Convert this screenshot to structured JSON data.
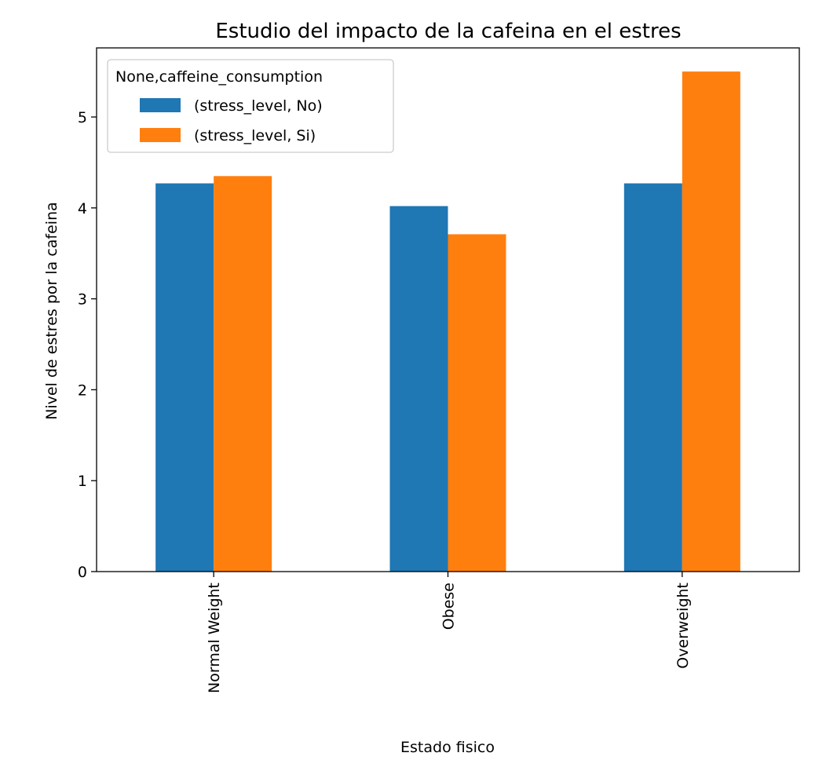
{
  "chart_data": {
    "type": "bar",
    "title": "Estudio del impacto de la cafeina en el estres",
    "xlabel": "Estado fisico",
    "ylabel": "Nivel de estres por la cafeina",
    "categories": [
      "Normal Weight",
      "Obese",
      "Overweight"
    ],
    "series": [
      {
        "name": "(stress_level, No)",
        "values": [
          4.27,
          4.02,
          4.27
        ],
        "color": "#1f77b4"
      },
      {
        "name": "(stress_level, Si)",
        "values": [
          4.35,
          3.71,
          5.5
        ],
        "color": "#ff7f0e"
      }
    ],
    "ylim": [
      0,
      5.76
    ],
    "yticks": [
      0,
      1,
      2,
      3,
      4,
      5
    ],
    "legend": {
      "title": "None,caffeine_consumption",
      "placement": "top-left"
    },
    "grid": false
  }
}
